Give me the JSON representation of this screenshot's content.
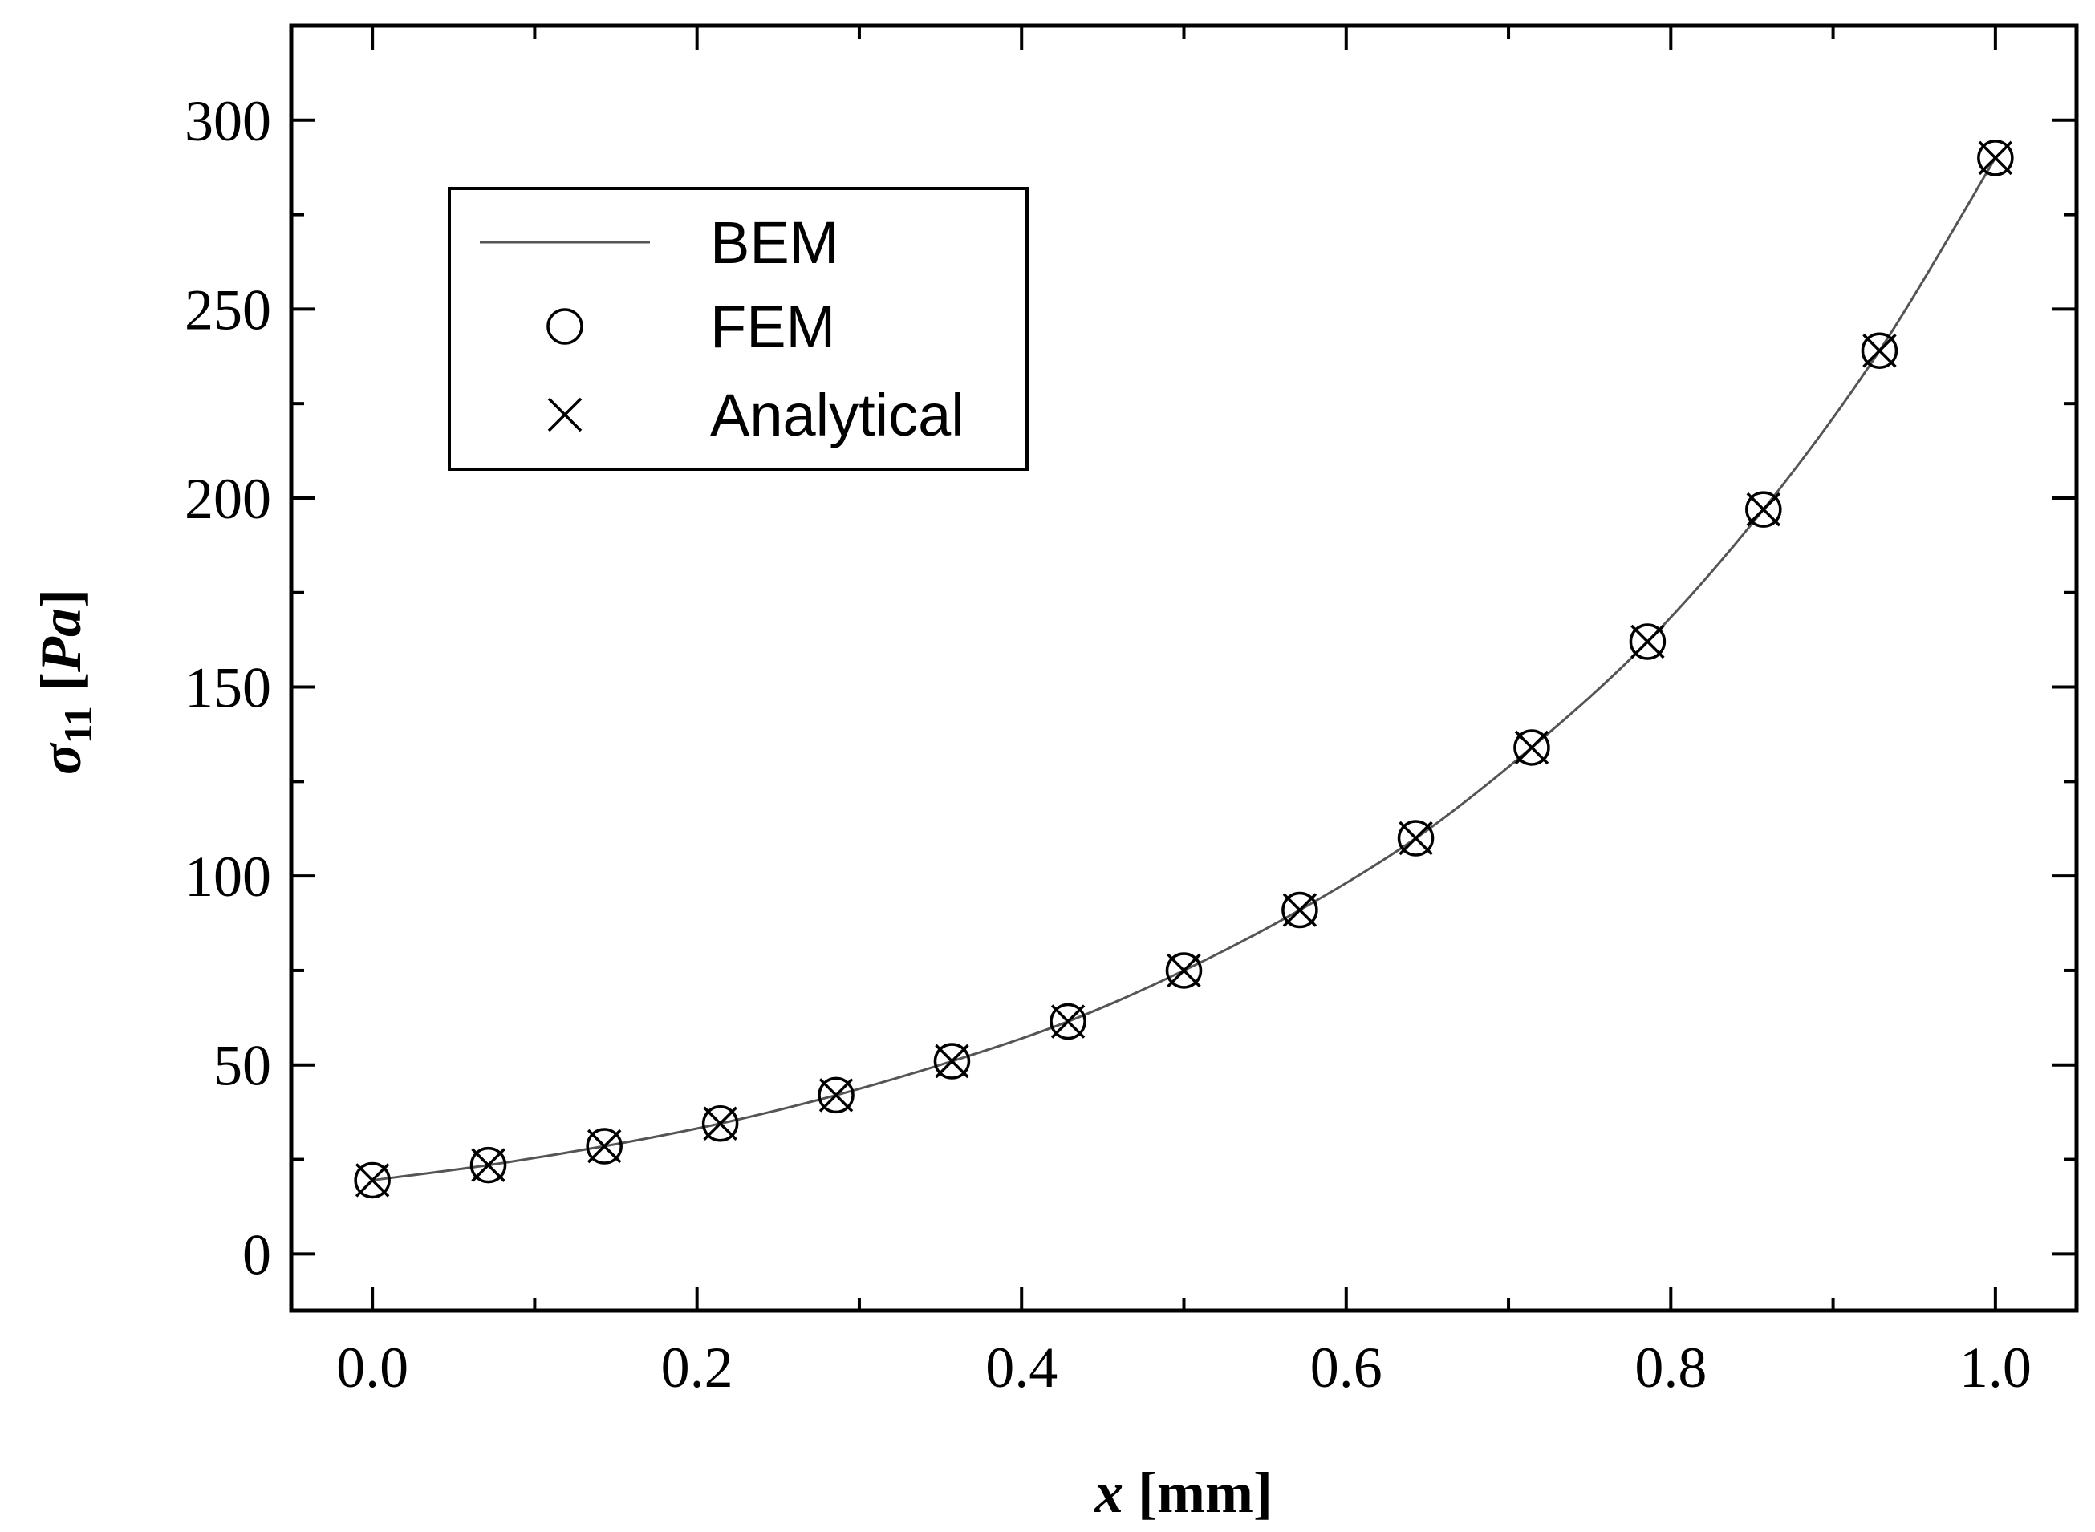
{
  "chart_data": {
    "type": "line",
    "xlabel_var": "x",
    "xlabel_unit": "[mm]",
    "ylabel_var": "σ",
    "ylabel_sub": "11",
    "ylabel_unit_var": "Pa",
    "xlim": [
      -0.05,
      1.05
    ],
    "ylim": [
      -15,
      325
    ],
    "xticks": [
      0.0,
      0.2,
      0.4,
      0.6,
      0.8,
      1.0
    ],
    "xtick_labels": [
      "0.0",
      "0.2",
      "0.4",
      "0.6",
      "0.8",
      "1.0"
    ],
    "yticks": [
      0,
      50,
      100,
      150,
      200,
      250,
      300
    ],
    "ytick_labels": [
      "0",
      "50",
      "100",
      "150",
      "200",
      "250",
      "300"
    ],
    "x": [
      0.0,
      0.0714,
      0.1429,
      0.2143,
      0.2857,
      0.3571,
      0.4286,
      0.5,
      0.5714,
      0.6429,
      0.7143,
      0.7857,
      0.8571,
      0.9286,
      1.0
    ],
    "series": [
      {
        "name": "BEM",
        "style": "line",
        "values": [
          19.5,
          23.5,
          28.5,
          34.5,
          42,
          51,
          61.5,
          75,
          91,
          110,
          134,
          162,
          197,
          239,
          290
        ]
      },
      {
        "name": "FEM",
        "style": "circle",
        "values": [
          19.5,
          23.5,
          28.5,
          34.5,
          42,
          51,
          61.5,
          75,
          91,
          110,
          134,
          162,
          197,
          239,
          290
        ]
      },
      {
        "name": "Analytical",
        "style": "cross",
        "values": [
          19.5,
          23.5,
          28.5,
          34.5,
          42,
          51,
          61.5,
          75,
          91,
          110,
          134,
          162,
          197,
          239,
          290
        ]
      }
    ],
    "legend_position": "top-left",
    "grid": false
  }
}
